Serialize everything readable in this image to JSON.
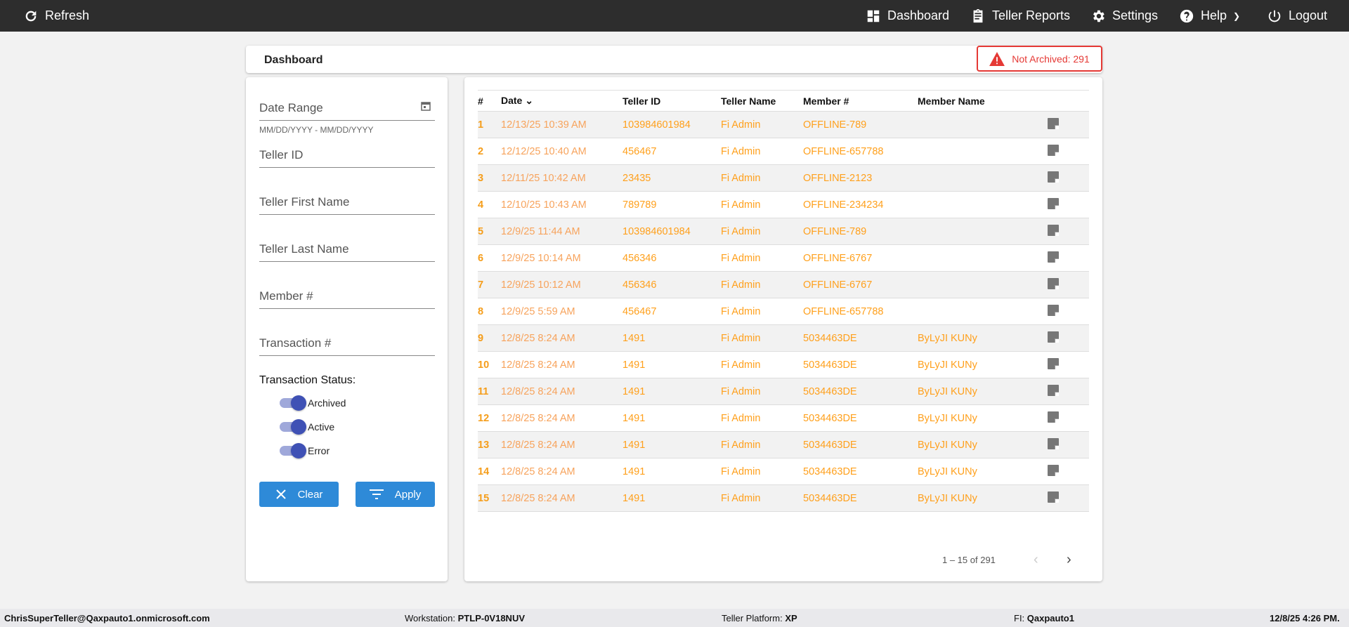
{
  "nav": {
    "refresh": "Refresh",
    "dashboard": "Dashboard",
    "teller_reports": "Teller Reports",
    "settings": "Settings",
    "help": "Help",
    "logout": "Logout"
  },
  "header": {
    "title": "Dashboard",
    "alert": "Not Archived: 291",
    "alert_color": "#e53935"
  },
  "filters": {
    "date_range": "Date Range",
    "date_hint": "MM/DD/YYYY - MM/DD/YYYY",
    "teller_id": "Teller ID",
    "teller_first": "Teller First Name",
    "teller_last": "Teller Last Name",
    "member": "Member #",
    "transaction": "Transaction #",
    "status_label": "Transaction Status:",
    "statuses": [
      {
        "label": "Archived",
        "on": true
      },
      {
        "label": "Active",
        "on": true
      },
      {
        "label": "Error",
        "on": true
      }
    ],
    "clear": "Clear",
    "apply": "Apply"
  },
  "table": {
    "columns": [
      "#",
      "Date",
      "Teller ID",
      "Teller Name",
      "Member #",
      "Member Name"
    ],
    "rows": [
      [
        "1",
        "12/13/25 10:39 AM",
        "103984601984",
        "Fi Admin",
        "OFFLINE-789",
        ""
      ],
      [
        "2",
        "12/12/25 10:40 AM",
        "456467",
        "Fi Admin",
        "OFFLINE-657788",
        ""
      ],
      [
        "3",
        "12/11/25 10:42 AM",
        "23435",
        "Fi Admin",
        "OFFLINE-2123",
        ""
      ],
      [
        "4",
        "12/10/25 10:43 AM",
        "789789",
        "Fi Admin",
        "OFFLINE-234234",
        ""
      ],
      [
        "5",
        "12/9/25 11:44 AM",
        "103984601984",
        "Fi Admin",
        "OFFLINE-789",
        ""
      ],
      [
        "6",
        "12/9/25 10:14 AM",
        "456346",
        "Fi Admin",
        "OFFLINE-6767",
        ""
      ],
      [
        "7",
        "12/9/25 10:12 AM",
        "456346",
        "Fi Admin",
        "OFFLINE-6767",
        ""
      ],
      [
        "8",
        "12/9/25 5:59 AM",
        "456467",
        "Fi Admin",
        "OFFLINE-657788",
        ""
      ],
      [
        "9",
        "12/8/25 8:24 AM",
        "1491",
        "Fi Admin",
        "5034463DE",
        "ByLyJI KUNy"
      ],
      [
        "10",
        "12/8/25 8:24 AM",
        "1491",
        "Fi Admin",
        "5034463DE",
        "ByLyJI KUNy"
      ],
      [
        "11",
        "12/8/25 8:24 AM",
        "1491",
        "Fi Admin",
        "5034463DE",
        "ByLyJI KUNy"
      ],
      [
        "12",
        "12/8/25 8:24 AM",
        "1491",
        "Fi Admin",
        "5034463DE",
        "ByLyJI KUNy"
      ],
      [
        "13",
        "12/8/25 8:24 AM",
        "1491",
        "Fi Admin",
        "5034463DE",
        "ByLyJI KUNy"
      ],
      [
        "14",
        "12/8/25 8:24 AM",
        "1491",
        "Fi Admin",
        "5034463DE",
        "ByLyJI KUNy"
      ],
      [
        "15",
        "12/8/25 8:24 AM",
        "1491",
        "Fi Admin",
        "5034463DE",
        "ByLyJI KUNy"
      ]
    ],
    "paging": "1 – 15 of 291"
  },
  "footer": {
    "user": "ChrisSuperTeller@Qaxpauto1.onmicrosoft.com",
    "workstation_label": "Workstation:",
    "workstation": "PTLP-0V18NUV",
    "platform_label": "Teller Platform:",
    "platform": "XP",
    "fi_label": "FI:",
    "fi": "Qaxpauto1",
    "datetime": "12/8/25 4:26 PM."
  }
}
